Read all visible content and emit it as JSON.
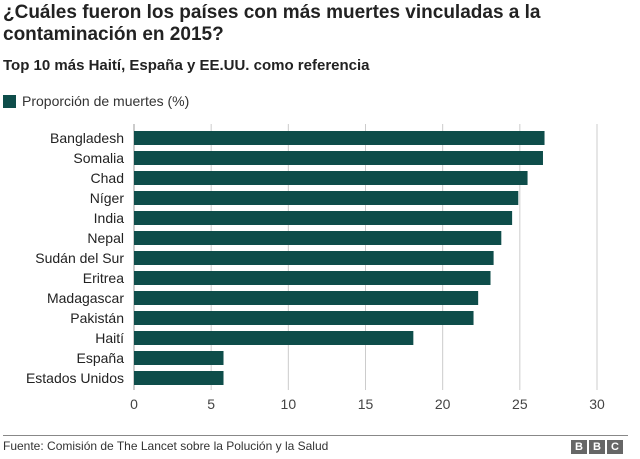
{
  "title": "¿Cuáles fueron los países con más muertes vinculadas a la contaminación en 2015?",
  "subtitle": "Top 10 más Haití, España y EE.UU. como referencia",
  "legend": {
    "label": "Proporción de muertes (%)"
  },
  "colors": {
    "bar": "#0e4d4a",
    "grid": "#cccccc",
    "text": "#222222"
  },
  "footer": {
    "source": "Fuente: Comisión de The Lancet sobre la Polución y la Salud",
    "logo_letters": [
      "B",
      "B",
      "C"
    ]
  },
  "chart_data": {
    "type": "bar",
    "orientation": "horizontal",
    "categories": [
      "Bangladesh",
      "Somalia",
      "Chad",
      "Níger",
      "India",
      "Nepal",
      "Sudán del Sur",
      "Eritrea",
      "Madagascar",
      "Pakistán",
      "Haití",
      "España",
      "Estados Unidos"
    ],
    "series": [
      {
        "name": "Proporción de muertes (%)",
        "values": [
          26.6,
          26.5,
          25.5,
          24.9,
          24.5,
          23.8,
          23.3,
          23.1,
          22.3,
          22.0,
          18.1,
          5.8,
          5.8
        ]
      }
    ],
    "xticks": [
      0,
      5,
      10,
      15,
      20,
      25,
      30
    ],
    "xlim": [
      0,
      30
    ],
    "grid": true,
    "legend_position": "top-left"
  }
}
